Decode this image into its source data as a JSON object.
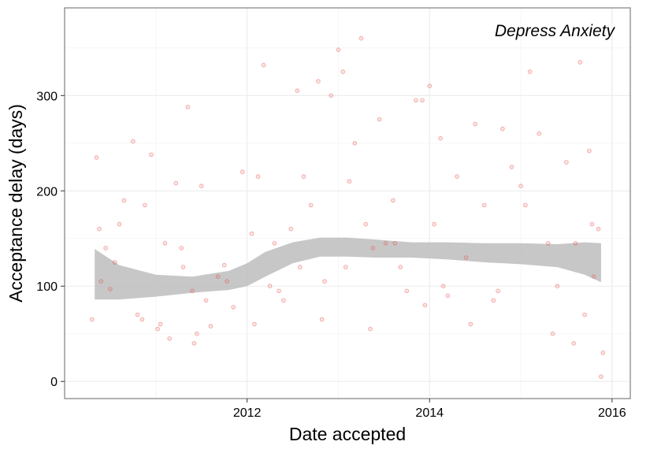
{
  "chart_data": {
    "type": "scatter",
    "annotation": "Depress Anxiety",
    "xlabel": "Date accepted",
    "ylabel": "Acceptance delay (days)",
    "xlim": [
      2010.0,
      2016.2
    ],
    "ylim": [
      -18,
      392
    ],
    "x_ticks": [
      {
        "value": 2012,
        "label": "2012"
      },
      {
        "value": 2014,
        "label": "2014"
      },
      {
        "value": 2016,
        "label": "2016"
      }
    ],
    "y_ticks": [
      {
        "value": 0,
        "label": "0"
      },
      {
        "value": 100,
        "label": "100"
      },
      {
        "value": 200,
        "label": "200"
      },
      {
        "value": 300,
        "label": "300"
      }
    ],
    "grid": true,
    "legend": "none",
    "point_color": "#e8504b",
    "band_color": "#bdbdbd",
    "smooth_fit": {
      "x": [
        2010.33,
        2010.6,
        2011.0,
        2011.4,
        2011.8,
        2012.0,
        2012.2,
        2012.5,
        2012.8,
        2013.1,
        2013.4,
        2013.8,
        2014.2,
        2014.6,
        2015.0,
        2015.4,
        2015.7,
        2015.88
      ],
      "y": [
        112,
        104,
        99,
        100,
        106,
        112,
        122,
        135,
        141,
        141,
        139,
        138,
        137,
        135,
        134,
        132,
        130,
        128
      ],
      "lower": [
        86,
        86,
        89,
        93,
        96,
        100,
        110,
        124,
        131,
        131,
        130,
        130,
        128,
        125,
        123,
        120,
        112,
        104
      ],
      "upper": [
        139,
        122,
        112,
        110,
        116,
        124,
        136,
        146,
        151,
        151,
        149,
        146,
        146,
        145,
        145,
        144,
        146,
        145
      ]
    },
    "points": {
      "x": [
        2010.3,
        2010.35,
        2010.4,
        2010.45,
        2010.5,
        2010.55,
        2010.65,
        2010.75,
        2010.8,
        2010.88,
        2010.95,
        2011.05,
        2011.1,
        2011.15,
        2011.22,
        2011.3,
        2011.35,
        2011.4,
        2011.45,
        2011.5,
        2011.6,
        2011.68,
        2011.75,
        2011.85,
        2011.95,
        2012.05,
        2012.12,
        2012.18,
        2012.25,
        2012.3,
        2012.4,
        2012.48,
        2012.55,
        2012.62,
        2012.7,
        2012.78,
        2012.85,
        2012.92,
        2013.0,
        2013.05,
        2013.12,
        2013.18,
        2013.25,
        2013.3,
        2013.38,
        2013.45,
        2013.52,
        2013.6,
        2013.68,
        2013.75,
        2013.85,
        2013.92,
        2014.0,
        2014.05,
        2014.12,
        2014.2,
        2014.3,
        2014.4,
        2014.5,
        2014.6,
        2014.7,
        2014.8,
        2014.9,
        2015.0,
        2015.1,
        2015.2,
        2015.3,
        2015.4,
        2015.5,
        2015.6,
        2015.65,
        2015.7,
        2015.75,
        2015.8,
        2015.85,
        2015.9,
        2015.88,
        2010.38,
        2010.6,
        2010.85,
        2011.02,
        2011.28,
        2011.42,
        2011.55,
        2011.78,
        2012.08,
        2012.35,
        2012.58,
        2012.82,
        2013.08,
        2013.35,
        2013.62,
        2013.95,
        2014.15,
        2014.45,
        2014.75,
        2015.05,
        2015.35,
        2015.58,
        2015.78
      ],
      "y": [
        65,
        235,
        105,
        140,
        97,
        125,
        190,
        252,
        70,
        185,
        238,
        60,
        145,
        45,
        208,
        120,
        288,
        95,
        50,
        205,
        58,
        110,
        122,
        78,
        220,
        155,
        215,
        332,
        100,
        145,
        85,
        160,
        305,
        215,
        185,
        315,
        105,
        300,
        348,
        325,
        210,
        250,
        360,
        165,
        140,
        275,
        145,
        190,
        120,
        95,
        295,
        295,
        310,
        165,
        255,
        90,
        215,
        130,
        270,
        185,
        85,
        265,
        225,
        205,
        325,
        260,
        145,
        100,
        230,
        145,
        335,
        70,
        242,
        110,
        160,
        30,
        5,
        160,
        165,
        65,
        55,
        140,
        40,
        85,
        105,
        60,
        95,
        120,
        65,
        120,
        55,
        145,
        80,
        100,
        60,
        95,
        185,
        50,
        40,
        165
      ]
    }
  }
}
